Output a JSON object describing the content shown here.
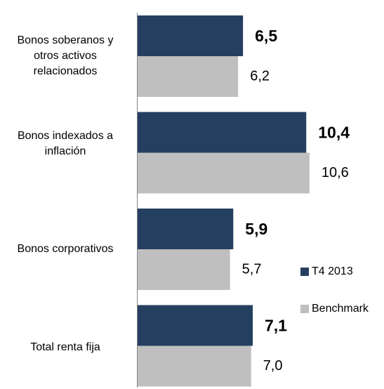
{
  "chart_data": {
    "type": "bar",
    "orientation": "horizontal",
    "categories": [
      "Bonos soberanos y otros activos relacionados",
      "Bonos indexados a inflación",
      "Bonos corporativos",
      "Total renta fija"
    ],
    "series": [
      {
        "name": "T4 2013",
        "color": "#243f60",
        "values": [
          6.5,
          10.4,
          5.9,
          7.1
        ],
        "value_labels": [
          "6,5",
          "10,4",
          "5,9",
          "7,1"
        ]
      },
      {
        "name": "Benchmark",
        "color": "#bfbfbf",
        "values": [
          6.2,
          10.6,
          5.7,
          7.0
        ],
        "value_labels": [
          "6,2",
          "10,6",
          "5,7",
          "7,0"
        ]
      }
    ]
  }
}
